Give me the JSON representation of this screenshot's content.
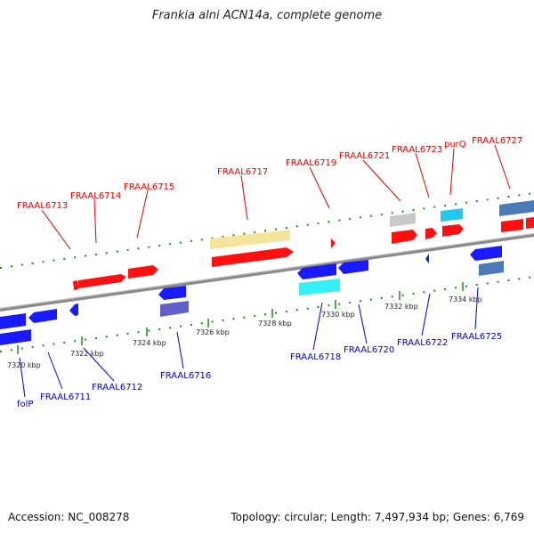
{
  "map": {
    "title": "Frankia alni ACN14a, complete genome",
    "accession": "Accession: NC_008278",
    "topology": "Topology: circular; Length: 7,497,934 bp; Genes: 6,769",
    "colors": {
      "forward_label": "#e00000",
      "reverse_label": "#0000cc",
      "backbone": "#8a8a8a",
      "forward_cds": "#ff1010",
      "reverse_cds": "#1a1aff",
      "forward_rna": "#f3e59a",
      "reverse_rna": "#33f0f5",
      "pseudogene": "#c8c8c8",
      "other_forward": "#22c8f0",
      "other_reverse": "#6060c8",
      "steel": "#4a7ab8"
    }
  },
  "ticks": [
    "7320 kbp",
    "7322 kbp",
    "7324 kbp",
    "7326 kbp",
    "7328 kbp",
    "7330 kbp",
    "7332 kbp",
    "7334 kbp"
  ],
  "forward_genes": [
    "FRAAL6713",
    "FRAAL6714",
    "FRAAL6715",
    "FRAAL6717",
    "FRAAL6719",
    "FRAAL6721",
    "FRAAL6723",
    "purQ",
    "FRAAL6727"
  ],
  "reverse_genes": [
    "folP",
    "FRAAL6711",
    "FRAAL6712",
    "FRAAL6716",
    "FRAAL6718",
    "FRAAL6720",
    "FRAAL6722",
    "FRAAL6725"
  ]
}
